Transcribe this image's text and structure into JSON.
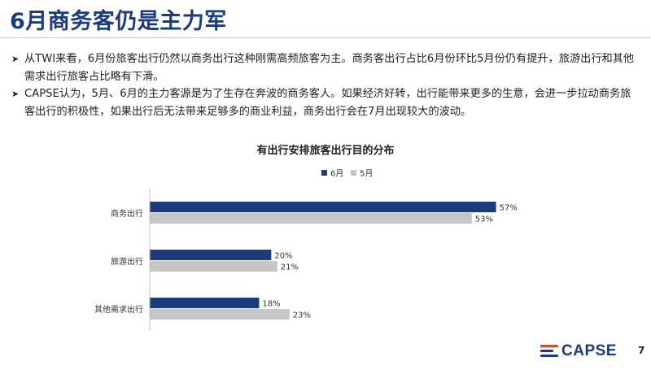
{
  "slide": {
    "title": "6月商务客仍是主力军",
    "bullets": [
      "从TWI来看，6月份旅客出行仍然以商务出行这种刚需高频旅客为主。商务客出行占比6月份环比5月份仍有提升，旅游出行和其他需求出行旅客占比略有下滑。",
      "CAPSE认为，5月、6月的主力客源是为了生存在奔波的商务客人。如果经济好转，出行能带来更多的生意，会进一步拉动商务旅客出行的积极性，如果出行后无法带来足够多的商业利益，商务出行会在7月出现较大的波动。"
    ],
    "bullet_icon": "arrow-right-icon",
    "logo_text": "CAPSE",
    "page_number": "7"
  },
  "chart_data": {
    "type": "bar",
    "orientation": "horizontal",
    "title": "有出行安排旅客出行目的分布",
    "categories": [
      "商务出行",
      "旅游出行",
      "其他需求出行"
    ],
    "series": [
      {
        "name": "6月",
        "values": [
          57,
          20,
          18
        ],
        "labels": [
          "57%",
          "20%",
          "18%"
        ],
        "color": "#1b3b7e"
      },
      {
        "name": "5月",
        "values": [
          53,
          21,
          23
        ],
        "labels": [
          "53%",
          "21%",
          "23%"
        ],
        "color": "#c6c6c6"
      }
    ],
    "xlim": [
      0,
      60
    ],
    "grid": false,
    "legend_position": "top-center",
    "data_labels": true
  }
}
